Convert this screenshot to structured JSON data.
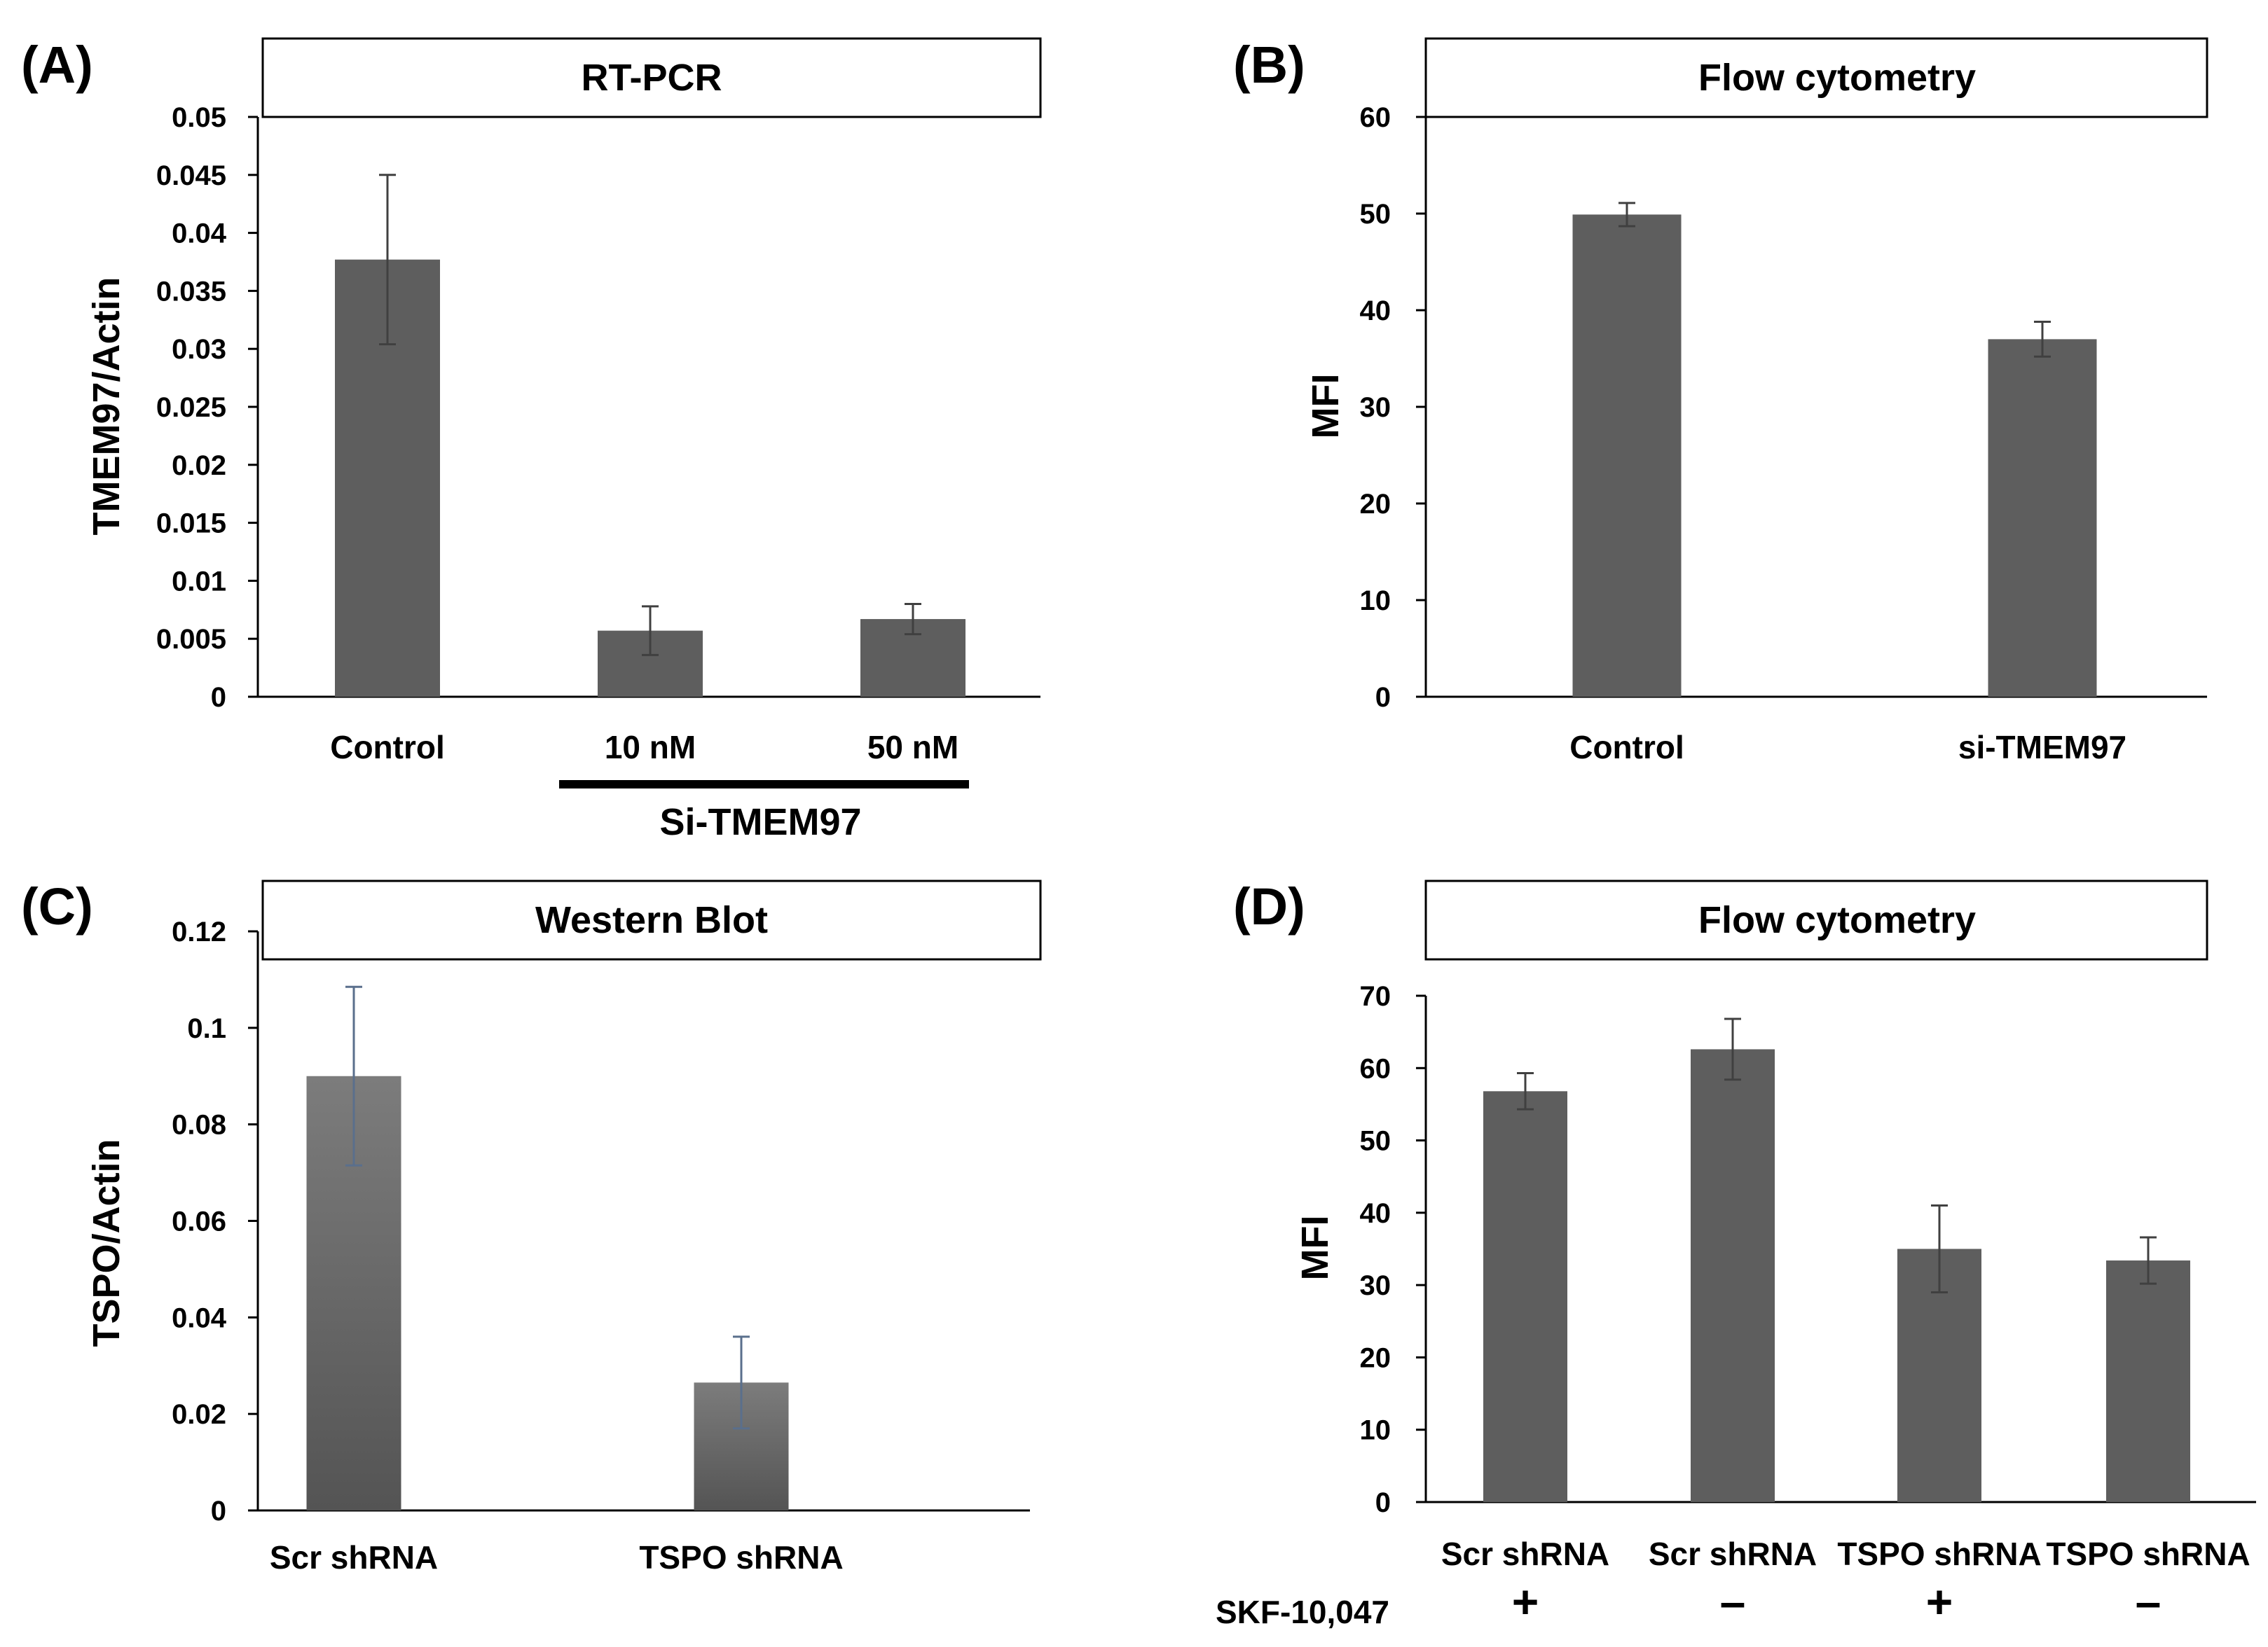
{
  "colors": {
    "bar": "#5e5e5e",
    "bar_gradient_top": "#7c7c7c",
    "bar_gradient_bottom": "#545454",
    "axis": "#000000",
    "error_bar": "#404040",
    "error_bar_c": "#5a6f8c"
  },
  "chart_data": [
    {
      "id": "A",
      "panel_label": "(A)",
      "type": "bar",
      "title": "RT-PCR",
      "ylabel": "TMEM97/Actin",
      "xlabel": "",
      "ylim": [
        0,
        0.05
      ],
      "yticks": [
        0,
        0.005,
        0.01,
        0.015,
        0.02,
        0.025,
        0.03,
        0.035,
        0.04,
        0.045,
        0.05
      ],
      "ytick_labels": [
        "0",
        "0.005",
        "0.01",
        "0.015",
        "0.02",
        "0.025",
        "0.03",
        "0.035",
        "0.04",
        "0.045",
        "0.05"
      ],
      "categories": [
        "Control",
        "10 nM",
        "50 nM"
      ],
      "values": [
        0.0377,
        0.0057,
        0.0067
      ],
      "errors": [
        0.0073,
        0.0021,
        0.0013
      ],
      "group_label": "Si-TMEM97",
      "group_span": [
        1,
        2
      ],
      "grid": false
    },
    {
      "id": "B",
      "panel_label": "(B)",
      "type": "bar",
      "title": "Flow cytometry",
      "ylabel": "MFI",
      "xlabel": "",
      "ylim": [
        0,
        60
      ],
      "yticks": [
        0,
        10,
        20,
        30,
        40,
        50,
        60
      ],
      "ytick_labels": [
        "0",
        "10",
        "20",
        "30",
        "40",
        "50",
        "60"
      ],
      "categories": [
        "Control",
        "si-TMEM97"
      ],
      "values": [
        49.9,
        37.0
      ],
      "errors": [
        1.2,
        1.8
      ],
      "grid": false
    },
    {
      "id": "C",
      "panel_label": "(C)",
      "type": "bar",
      "title": "Western Blot",
      "ylabel": "TSPO/Actin",
      "xlabel": "",
      "ylim": [
        0,
        0.12
      ],
      "yticks": [
        0,
        0.02,
        0.04,
        0.06,
        0.08,
        0.1,
        0.12
      ],
      "ytick_labels": [
        "0",
        "0.02",
        "0.04",
        "0.06",
        "0.08",
        "0.1",
        "0.12"
      ],
      "categories": [
        "Scr shRNA",
        "TSPO shRNA"
      ],
      "values": [
        0.09,
        0.0265
      ],
      "errors": [
        0.0185,
        0.0095
      ],
      "grid": false
    },
    {
      "id": "D",
      "panel_label": "(D)",
      "type": "bar",
      "title": "Flow cytometry",
      "ylabel": "MFI",
      "xlabel": "",
      "ylim": [
        0,
        70
      ],
      "yticks": [
        0,
        10,
        20,
        30,
        40,
        50,
        60,
        70
      ],
      "ytick_labels": [
        "0",
        "10",
        "20",
        "30",
        "40",
        "50",
        "60",
        "70"
      ],
      "categories": [
        "Scr shRNA",
        "Scr shRNA",
        "TSPO shRNA",
        "TSPO shRNA"
      ],
      "values": [
        56.8,
        62.6,
        35.0,
        33.4
      ],
      "errors": [
        2.5,
        4.2,
        6.0,
        3.2
      ],
      "treatment_label": "SKF-10,047",
      "treatment_signs": [
        "+",
        "–",
        "+",
        "–"
      ],
      "grid": false
    }
  ]
}
